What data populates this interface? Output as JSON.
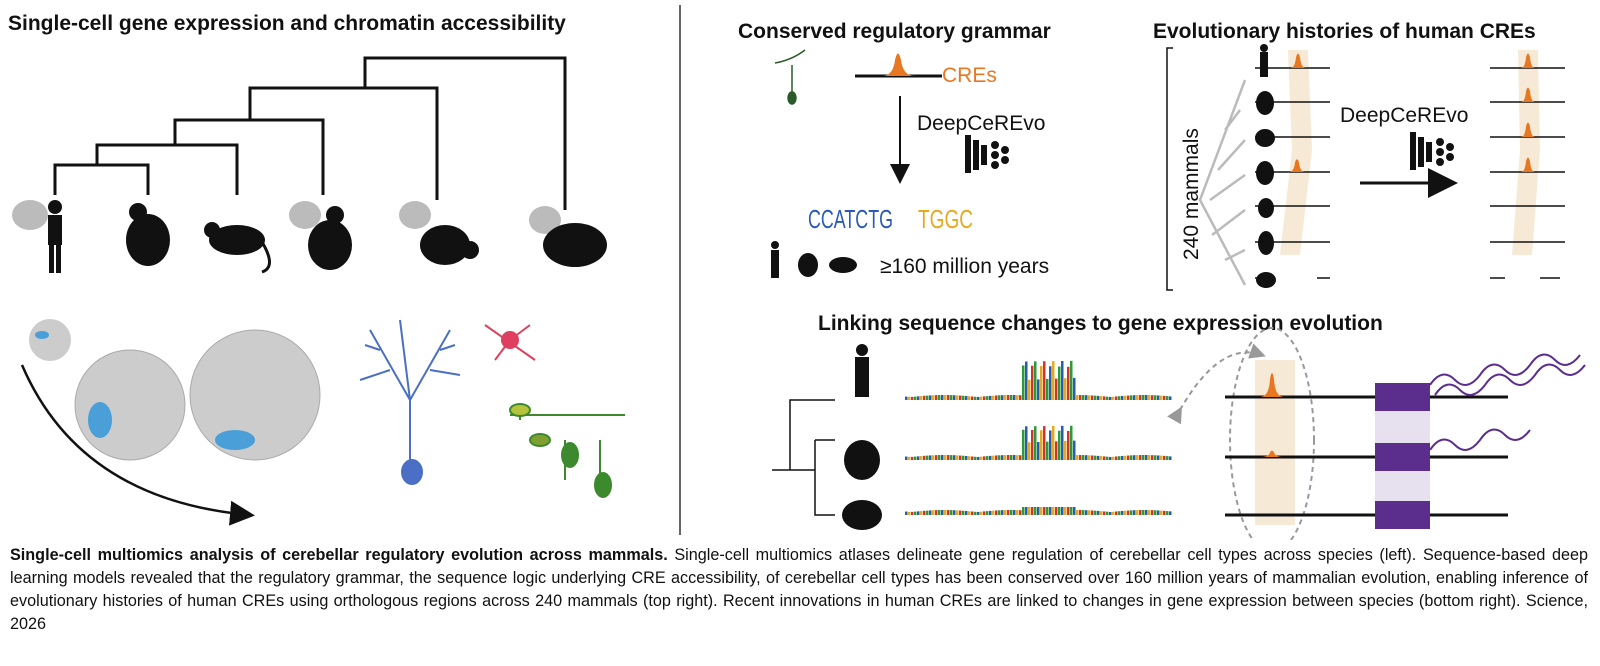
{
  "panels": {
    "left": {
      "title": "Single-cell gene expression and chromatin accessibility"
    },
    "grammar": {
      "title": "Conserved regulatory grammar",
      "cre_label": "CREs",
      "model_label": "DeepCeREvo",
      "motif1": "CCATCTG",
      "motif2": "TGGC",
      "time_label": "≥160 million years"
    },
    "histories": {
      "title": "Evolutionary histories of human CREs",
      "axis_label": "240 mammals",
      "model_label": "DeepCeREvo"
    },
    "linking": {
      "title": "Linking sequence changes to gene expression evolution"
    }
  },
  "colors": {
    "cre_orange": "#e87722",
    "brain_blue": "#4a9fd8",
    "purple": "#5b2d8e",
    "beige_band": "#f6ead6",
    "gray": "#bdbdbd"
  },
  "caption": {
    "bold": "Single-cell multiomics analysis of cerebellar regulatory evolution across mammals.",
    "text": " Single-cell multiomics atlases delineate gene regulation of cerebellar cell types across species (left). Sequence-based deep learning models revealed that the regulatory grammar, the sequence logic underlying CRE accessibility, of cerebellar cell types has been conserved over 160 million years of mammalian evolution, enabling inference of evolutionary histories of human CREs using orthologous regions across 240 mammals (top right). Recent innovations in human CREs are linked to changes in gene expression between species (bottom right). Science, 2026"
  }
}
